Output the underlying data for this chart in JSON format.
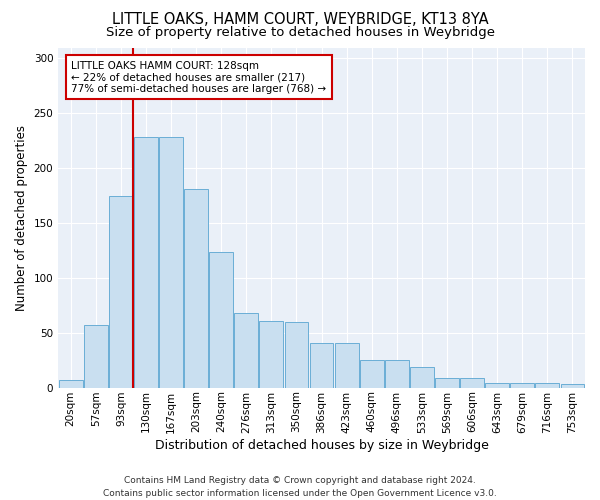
{
  "title": "LITTLE OAKS, HAMM COURT, WEYBRIDGE, KT13 8YA",
  "subtitle": "Size of property relative to detached houses in Weybridge",
  "xlabel": "Distribution of detached houses by size in Weybridge",
  "ylabel": "Number of detached properties",
  "categories": [
    "20sqm",
    "57sqm",
    "93sqm",
    "130sqm",
    "167sqm",
    "203sqm",
    "240sqm",
    "276sqm",
    "313sqm",
    "350sqm",
    "386sqm",
    "423sqm",
    "460sqm",
    "496sqm",
    "533sqm",
    "569sqm",
    "606sqm",
    "643sqm",
    "679sqm",
    "716sqm",
    "753sqm"
  ],
  "values": [
    7,
    57,
    175,
    228,
    228,
    181,
    124,
    68,
    61,
    60,
    41,
    41,
    25,
    25,
    19,
    9,
    9,
    4,
    4,
    4,
    3
  ],
  "bar_color": "#c9dff0",
  "bar_edge_color": "#6aaed6",
  "bg_color": "#eaf0f8",
  "grid_color": "#ffffff",
  "annotation_box_text": "LITTLE OAKS HAMM COURT: 128sqm\n← 22% of detached houses are smaller (217)\n77% of semi-detached houses are larger (768) →",
  "annotation_box_color": "#cc0000",
  "vline_x": 2.5,
  "footer_line1": "Contains HM Land Registry data © Crown copyright and database right 2024.",
  "footer_line2": "Contains public sector information licensed under the Open Government Licence v3.0.",
  "ylim": [
    0,
    310
  ],
  "title_fontsize": 10.5,
  "subtitle_fontsize": 9.5,
  "xlabel_fontsize": 9,
  "ylabel_fontsize": 8.5,
  "tick_fontsize": 7.5,
  "ann_fontsize": 7.5,
  "footer_fontsize": 6.5
}
